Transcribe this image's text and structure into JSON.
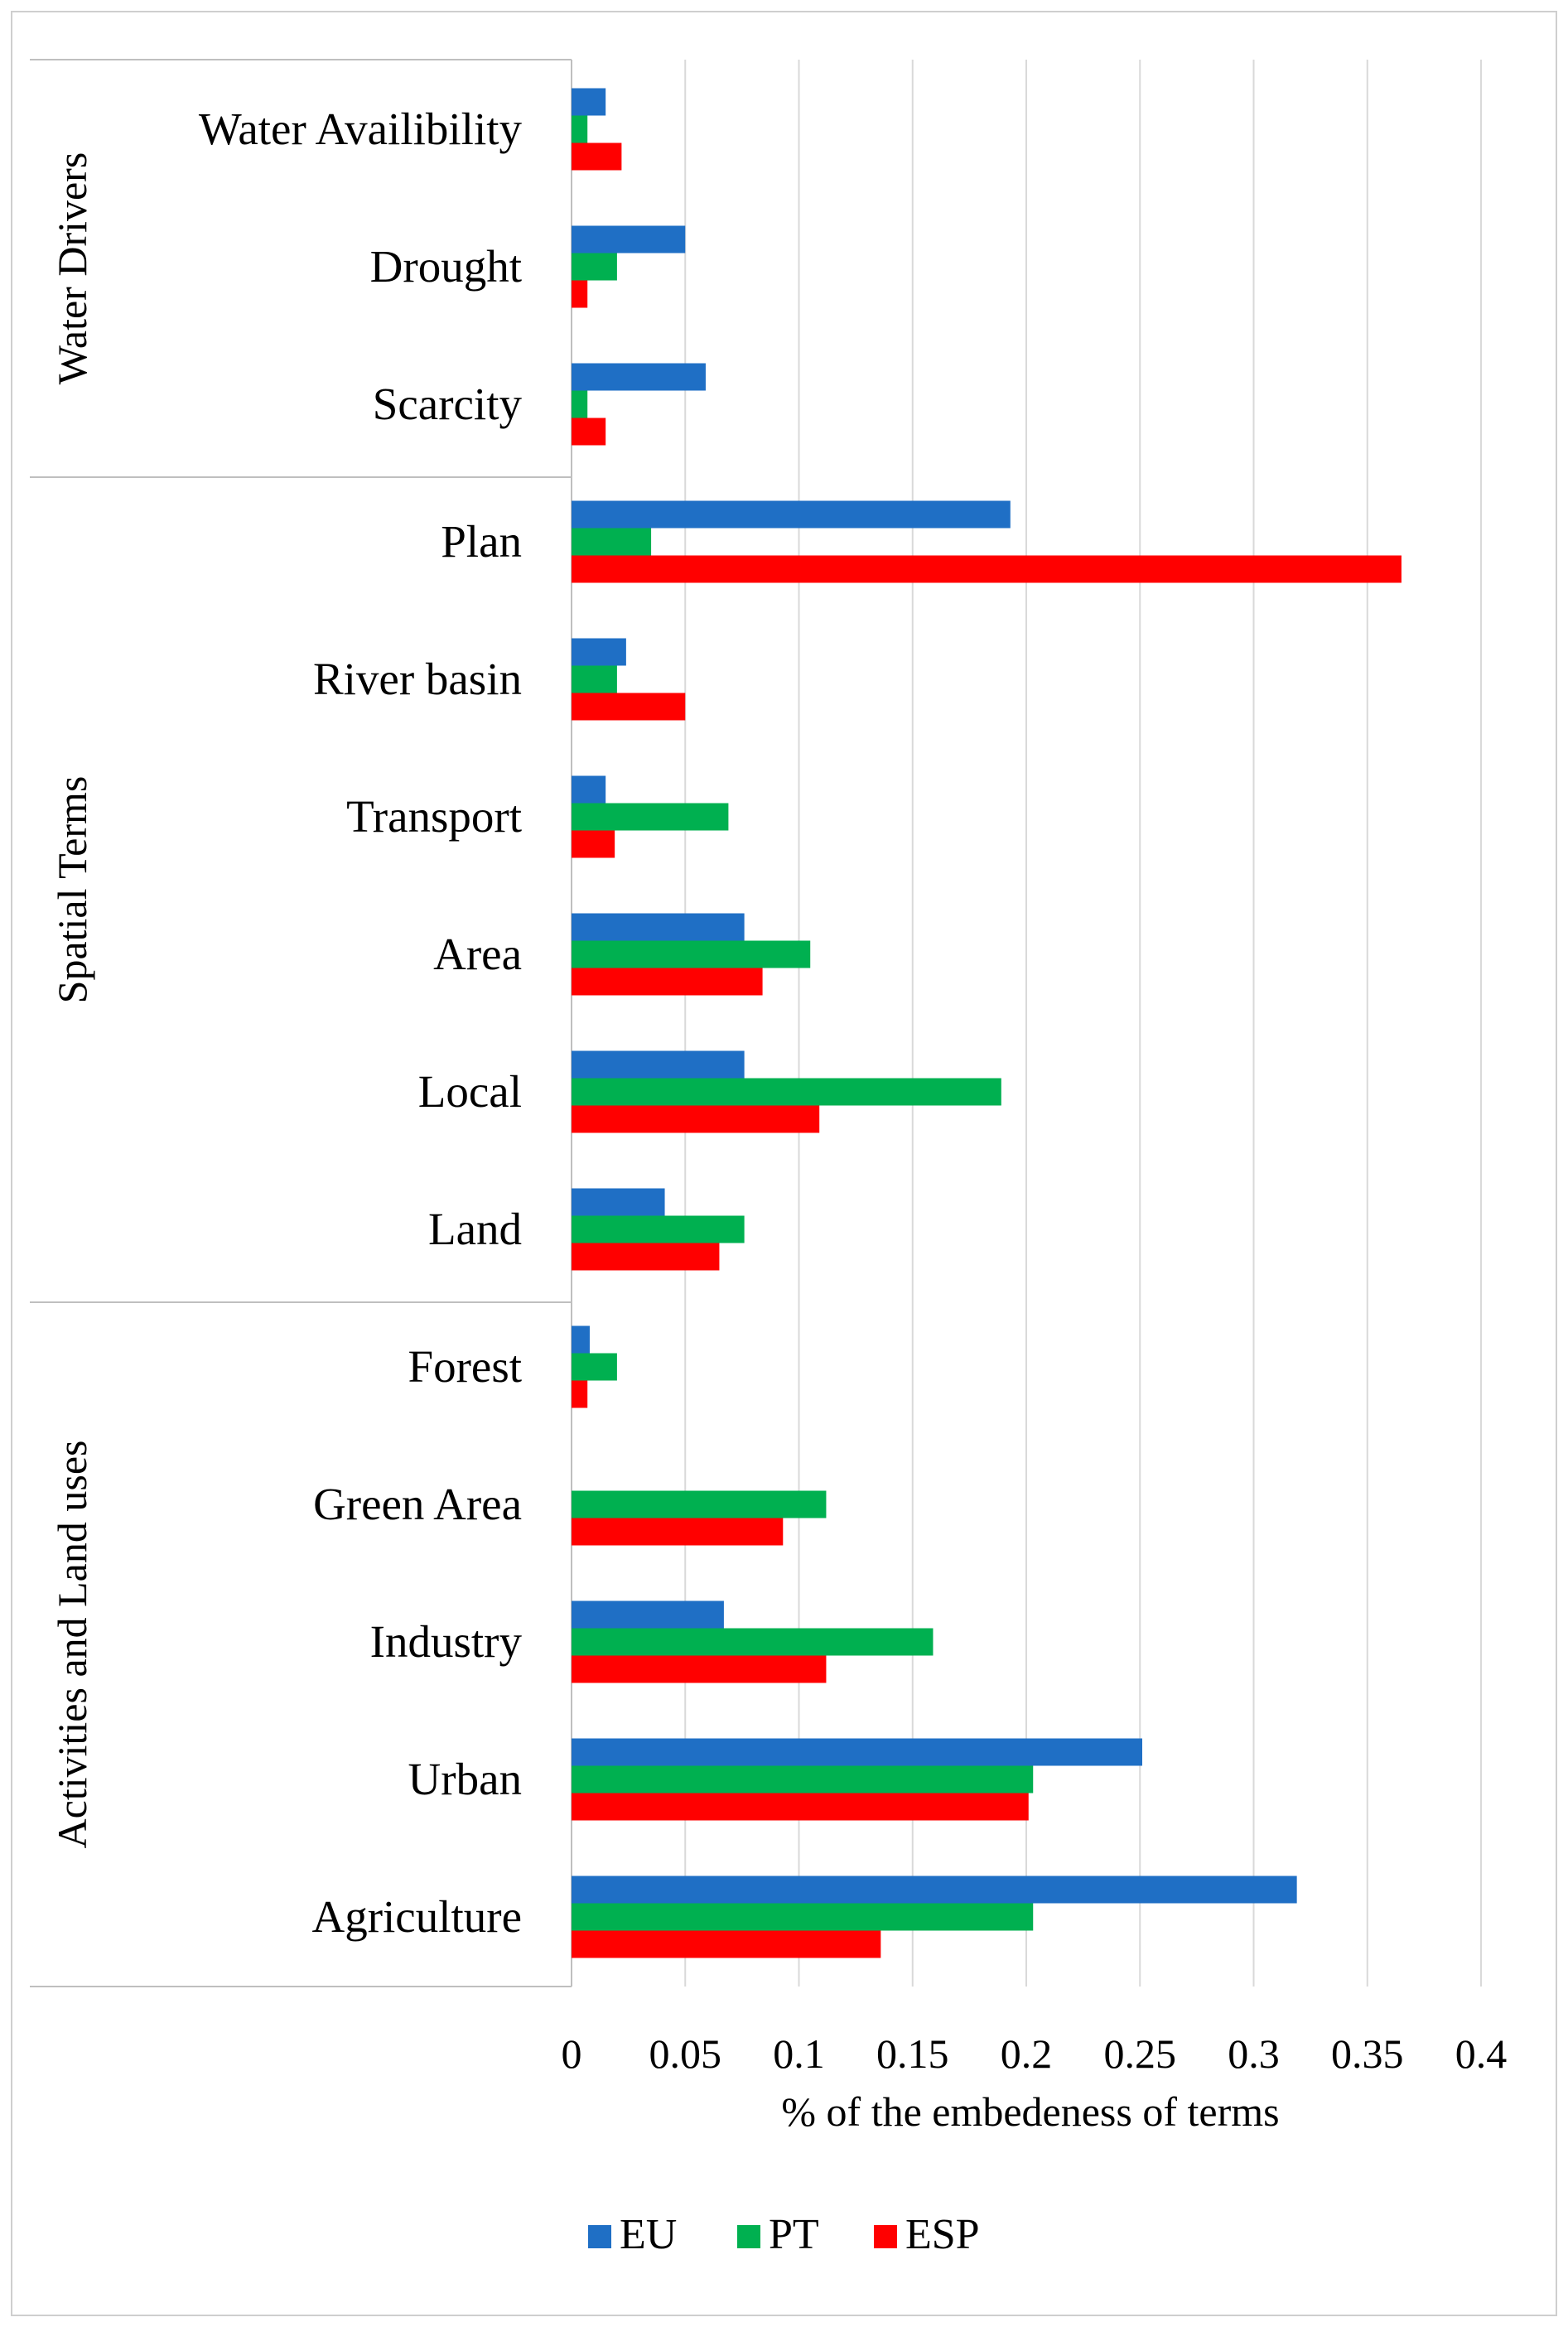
{
  "chart_data": {
    "type": "bar",
    "orientation": "horizontal",
    "title": "",
    "xlabel": "% of the embedeness of terms",
    "ylabel": "",
    "xlim": [
      0,
      0.4
    ],
    "xticks": [
      0,
      0.05,
      0.1,
      0.15,
      0.2,
      0.25,
      0.3,
      0.35,
      0.4
    ],
    "xtick_labels": [
      "0",
      "0.05",
      "0.1",
      "0.15",
      "0.2",
      "0.25",
      "0.3",
      "0.35",
      "0.4"
    ],
    "grid": "vertical",
    "legend_position": "bottom",
    "categories": [
      "Water Availibility",
      "Drought",
      "Scarcity",
      "Plan",
      "River basin",
      "Transport",
      "Area",
      "Local",
      "Land",
      "Forest",
      "Green Area",
      "Industry",
      "Urban",
      "Agriculture"
    ],
    "groups": [
      {
        "label": "Water Drivers",
        "categories": [
          "Water Availibility",
          "Drought",
          "Scarcity"
        ]
      },
      {
        "label": "Spatial Terms",
        "categories": [
          "Plan",
          "River basin",
          "Transport",
          "Area",
          "Local",
          "Land"
        ]
      },
      {
        "label": "Activities and Land uses",
        "categories": [
          "Forest",
          "Green Area",
          "Industry",
          "Urban",
          "Agriculture"
        ]
      }
    ],
    "series": [
      {
        "name": "EU",
        "color": "#1f6fc5",
        "values": [
          0.015,
          0.05,
          0.059,
          0.193,
          0.024,
          0.015,
          0.076,
          0.076,
          0.041,
          0.008,
          0.0,
          0.067,
          0.251,
          0.319
        ]
      },
      {
        "name": "PT",
        "color": "#00b050",
        "values": [
          0.007,
          0.02,
          0.007,
          0.035,
          0.02,
          0.069,
          0.105,
          0.189,
          0.076,
          0.02,
          0.112,
          0.159,
          0.203,
          0.203
        ]
      },
      {
        "name": "ESP",
        "color": "#ff0000",
        "values": [
          0.022,
          0.007,
          0.015,
          0.365,
          0.05,
          0.019,
          0.084,
          0.109,
          0.065,
          0.007,
          0.093,
          0.112,
          0.201,
          0.136
        ]
      }
    ]
  }
}
